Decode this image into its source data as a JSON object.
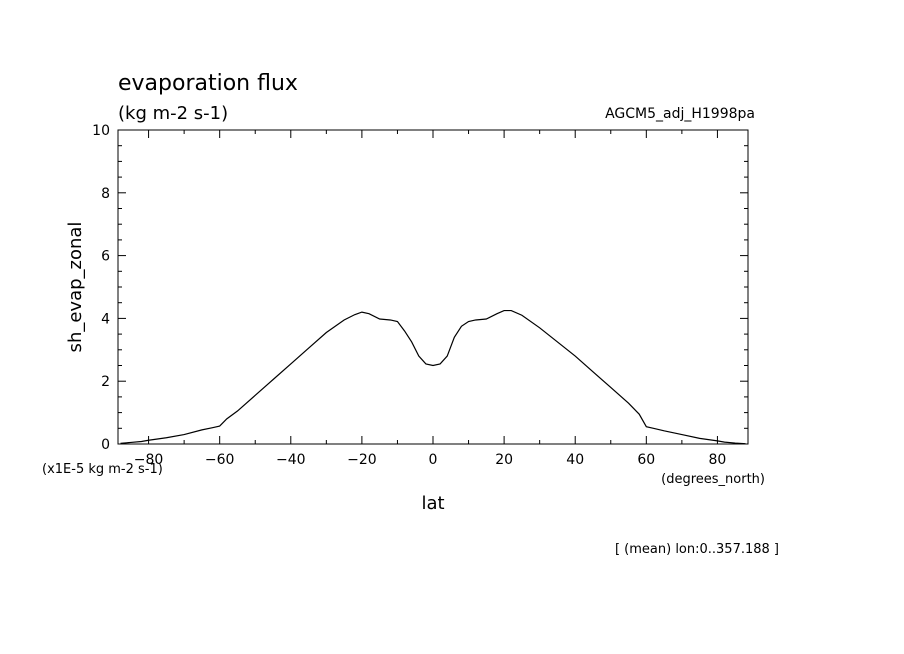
{
  "chart_data": {
    "type": "line",
    "title": "evaporation flux",
    "subtitle": "(kg m-2 s-1)",
    "experiment": "AGCM5_adj_H1998pa",
    "xlabel": "lat",
    "xunits": "(degrees_north)",
    "ylabel": "sh_evap_zonal",
    "yunits": "(x1E-5 kg m-2 s-1)",
    "footnote": "[ (mean) lon:0..357.188 ]",
    "xlim": [
      -88.6,
      88.6
    ],
    "ylim": [
      0,
      10
    ],
    "xticks": [
      -80,
      -60,
      -40,
      -20,
      0,
      20,
      40,
      60,
      80
    ],
    "yticks": [
      0,
      2,
      4,
      6,
      8,
      10
    ],
    "grid": false,
    "line_color": "#000000",
    "series": [
      {
        "x": [
          -87.9,
          -85,
          -82,
          -80,
          -75,
          -70,
          -65,
          -62,
          -60,
          -58,
          -55,
          -50,
          -45,
          -40,
          -35,
          -30,
          -25,
          -22,
          -20,
          -18,
          -15,
          -12,
          -10,
          -8,
          -6,
          -4,
          -2,
          0,
          2,
          4,
          6,
          8,
          10,
          12,
          15,
          18,
          20,
          22,
          25,
          30,
          35,
          40,
          45,
          50,
          55,
          58,
          60,
          62,
          65,
          70,
          75,
          80,
          82,
          85,
          87.9
        ],
        "y": [
          0.02,
          0.05,
          0.08,
          0.12,
          0.2,
          0.3,
          0.45,
          0.52,
          0.57,
          0.8,
          1.05,
          1.55,
          2.05,
          2.55,
          3.05,
          3.55,
          3.95,
          4.12,
          4.2,
          4.15,
          3.98,
          3.95,
          3.9,
          3.6,
          3.25,
          2.8,
          2.55,
          2.5,
          2.55,
          2.8,
          3.4,
          3.75,
          3.9,
          3.95,
          3.98,
          4.15,
          4.25,
          4.25,
          4.1,
          3.7,
          3.25,
          2.8,
          2.3,
          1.8,
          1.3,
          0.95,
          0.55,
          0.5,
          0.42,
          0.3,
          0.18,
          0.1,
          0.06,
          0.03,
          0.01
        ]
      }
    ]
  }
}
